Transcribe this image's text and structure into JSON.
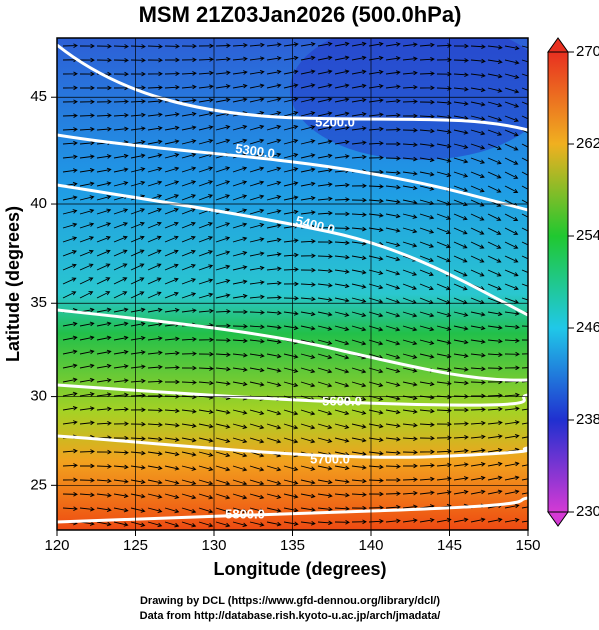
{
  "chart_data": {
    "type": "map",
    "title": "MSM 21Z03Jan2026 (500.0hPa)",
    "x_label": "Longitude (degrees)",
    "y_label": "Latitude  (degrees)",
    "projection": "mercator",
    "xlim": [
      120,
      150
    ],
    "xticks": [
      120,
      125,
      130,
      135,
      140,
      145,
      150
    ],
    "ylim": [
      22.4,
      47.6
    ],
    "yticks": [
      25,
      30,
      35,
      40,
      45
    ],
    "colorbar": {
      "lim": [
        230,
        270
      ],
      "ticks": [
        230,
        238,
        246,
        254,
        262,
        270
      ]
    },
    "contour_labels": [
      "5200.0",
      "5300.0",
      "5400.0",
      "5600.0",
      "5700.0",
      "5800.0"
    ],
    "footer": [
      "Drawing by DCL (https://www.gfd-dennou.org/library/dcl/)",
      "Data from http://database.rish.kyoto-u.ac.jp/arch/jmadata/"
    ]
  }
}
